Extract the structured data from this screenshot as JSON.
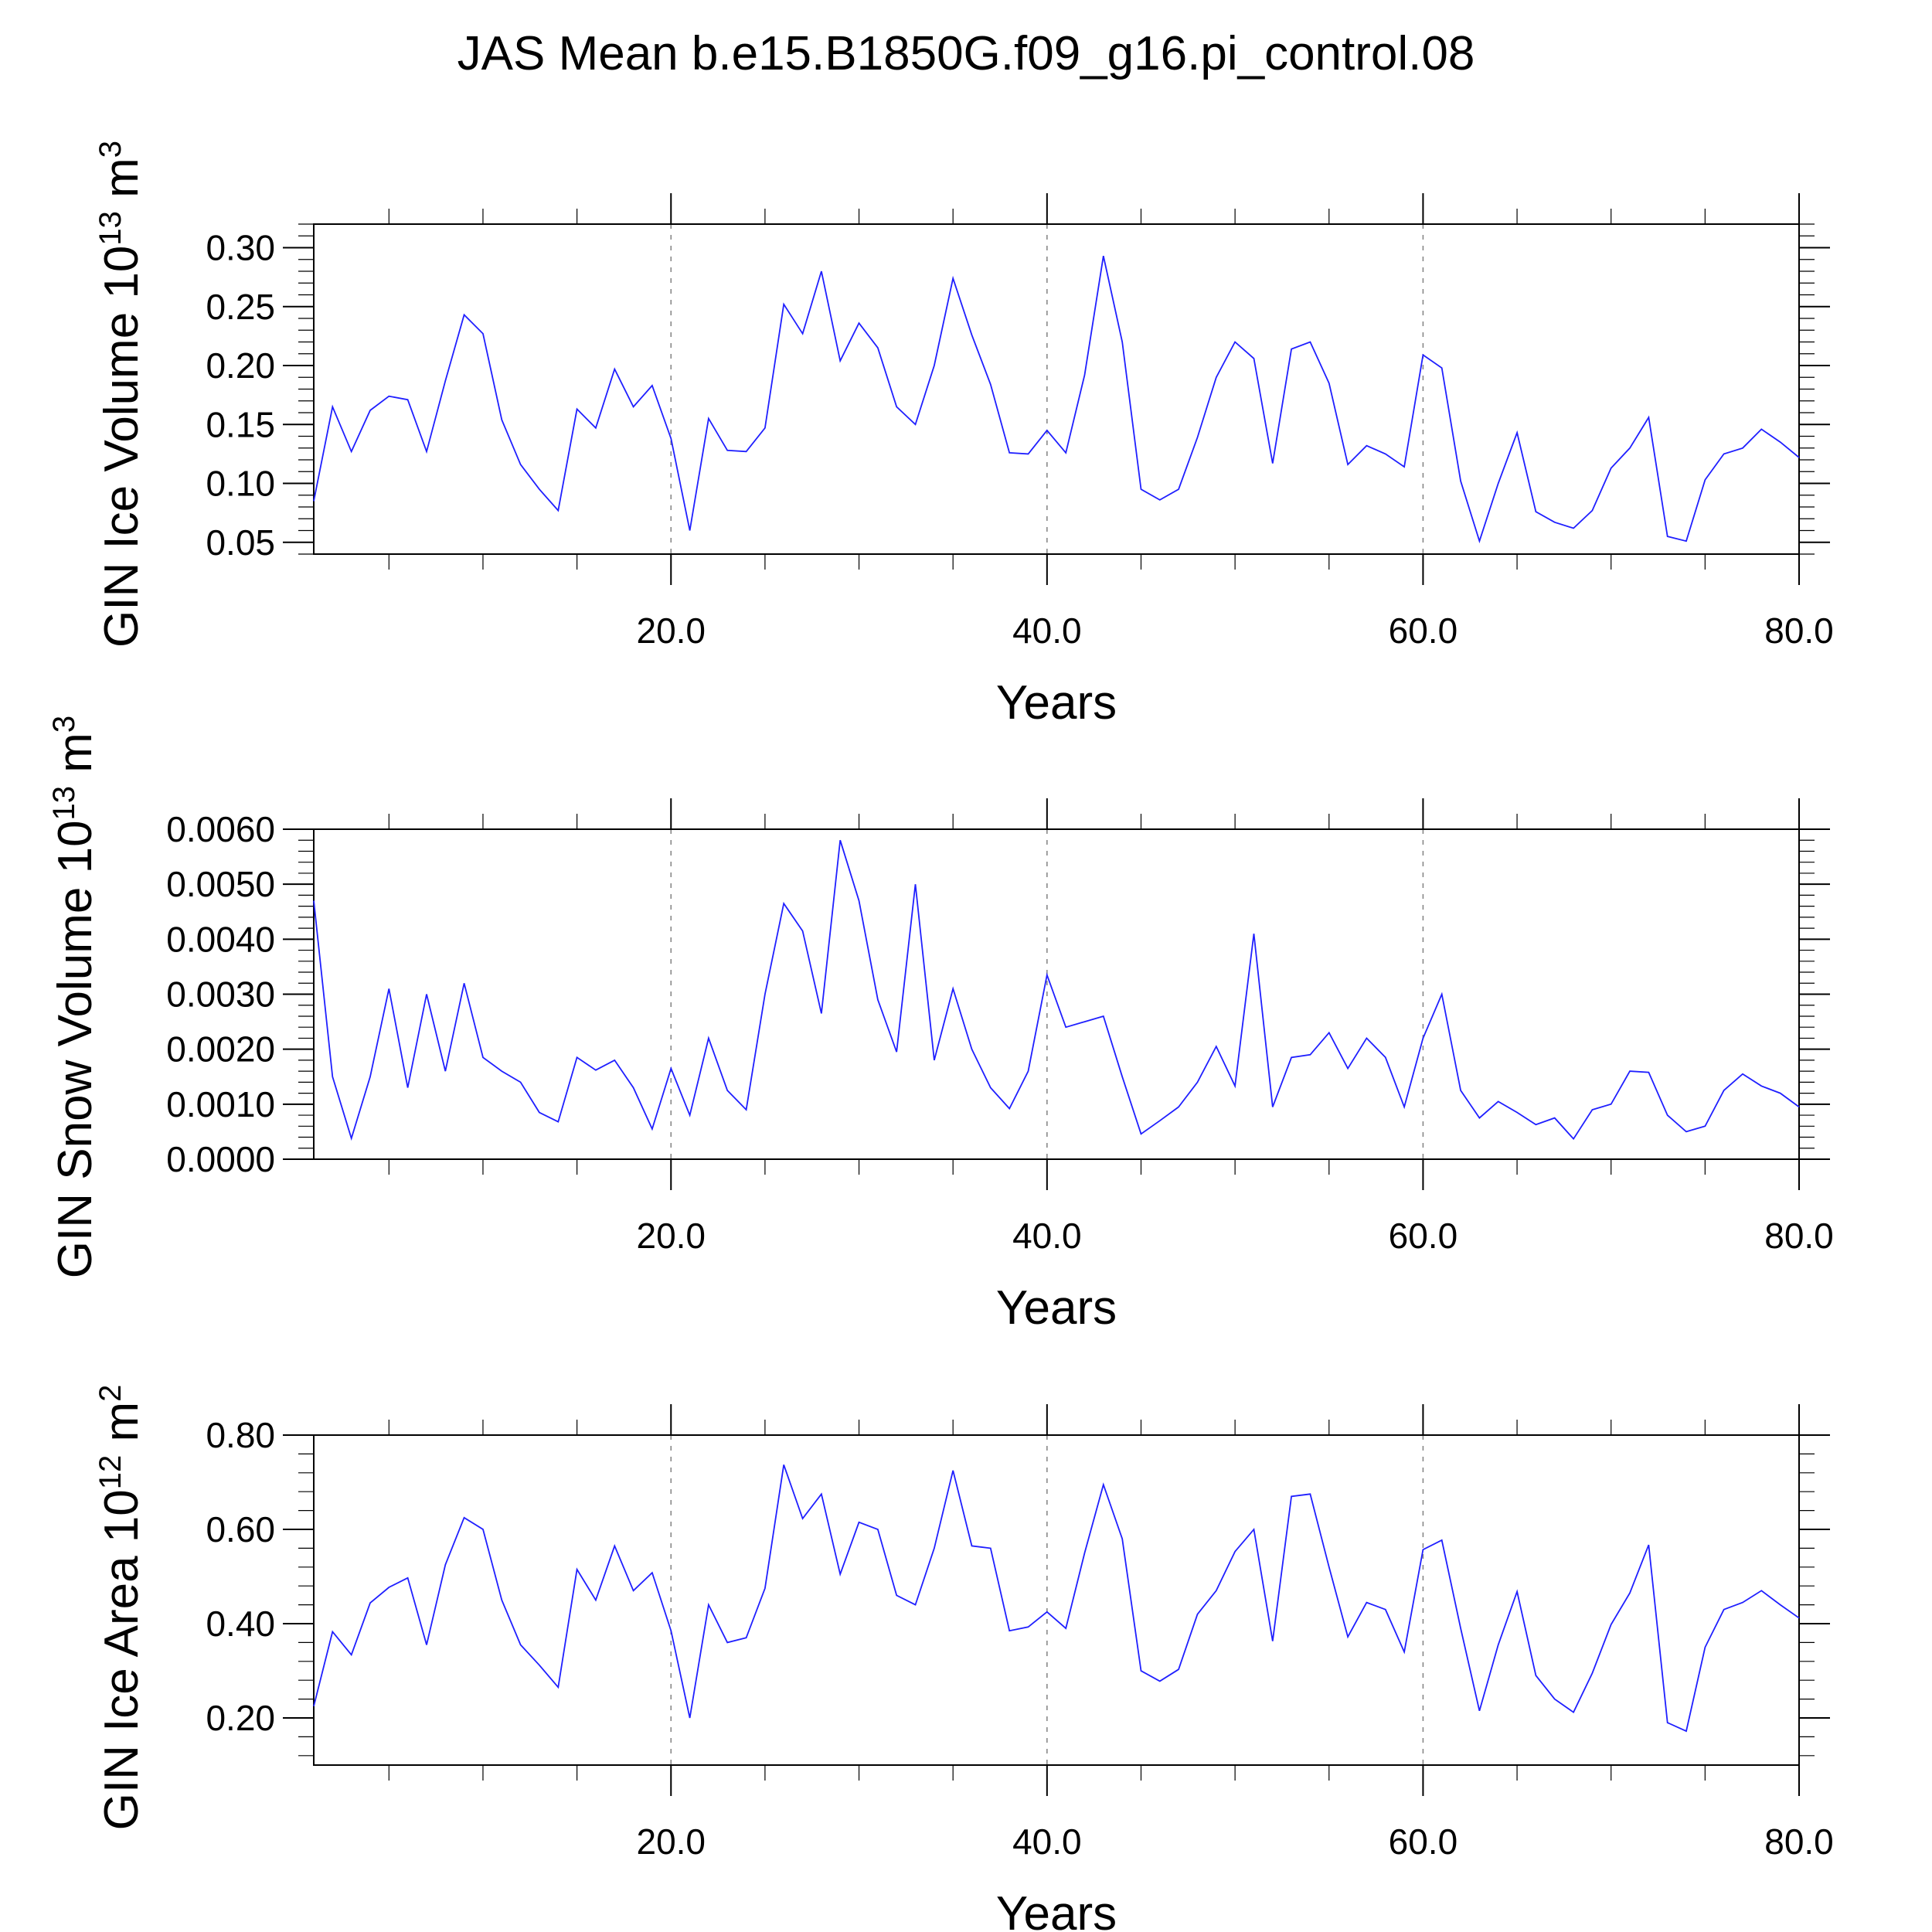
{
  "figure": {
    "title": "JAS Mean b.e15.B1850G.f09_g16.pi_control.08"
  },
  "chart_data": [
    {
      "type": "line",
      "ylabel": "GIN Ice Volume 10",
      "ylabel_exp": "13",
      "ylabel_unit": " m",
      "ylabel_unit_exp": "3",
      "xlabel": "Years",
      "xlim": [
        1,
        80
      ],
      "ylim": [
        0.04,
        0.32
      ],
      "x_ticks": [
        20,
        40,
        60,
        80
      ],
      "x_tick_labels": [
        "20.0",
        "40.0",
        "60.0",
        "80.0"
      ],
      "y_ticks": [
        0.05,
        0.1,
        0.15,
        0.2,
        0.25,
        0.3
      ],
      "y_tick_labels": [
        "0.05",
        "0.10",
        "0.15",
        "0.20",
        "0.25",
        "0.30"
      ],
      "color": "#1f1fff",
      "series": [
        {
          "x": [
            1,
            2,
            3,
            4,
            5,
            6,
            7,
            8,
            9,
            10,
            11,
            12,
            13,
            14,
            15,
            16,
            17,
            18,
            19,
            20,
            21,
            22,
            23,
            24,
            25,
            26,
            27,
            28,
            29,
            30,
            31,
            32,
            33,
            34,
            35,
            36,
            37,
            38,
            39,
            40,
            41,
            42,
            43,
            44,
            45,
            46,
            47,
            48,
            49,
            50,
            51,
            52,
            53,
            54,
            55,
            56,
            57,
            58,
            59,
            60,
            61,
            62,
            63,
            64,
            65,
            66,
            67,
            68,
            69,
            70,
            71,
            72,
            73,
            74,
            75,
            76,
            77,
            78,
            79,
            80
          ],
          "values": [
            0.085,
            0.165,
            0.127,
            0.162,
            0.174,
            0.171,
            0.127,
            0.187,
            0.243,
            0.227,
            0.154,
            0.116,
            0.095,
            0.077,
            0.163,
            0.147,
            0.197,
            0.165,
            0.183,
            0.138,
            0.06,
            0.155,
            0.128,
            0.127,
            0.147,
            0.252,
            0.227,
            0.28,
            0.204,
            0.236,
            0.215,
            0.165,
            0.15,
            0.2,
            0.274,
            0.226,
            0.184,
            0.126,
            0.125,
            0.145,
            0.126,
            0.192,
            0.293,
            0.22,
            0.095,
            0.086,
            0.095,
            0.139,
            0.19,
            0.22,
            0.206,
            0.117,
            0.214,
            0.22,
            0.185,
            0.116,
            0.132,
            0.125,
            0.114,
            0.209,
            0.198,
            0.102,
            0.051,
            0.1,
            0.143,
            0.076,
            0.067,
            0.062,
            0.077,
            0.113,
            0.13,
            0.156,
            0.055,
            0.051,
            0.103,
            0.125,
            0.13,
            0.146,
            0.135,
            0.122
          ]
        }
      ]
    },
    {
      "type": "line",
      "ylabel": "GIN Snow Volume 10",
      "ylabel_exp": "13",
      "ylabel_unit": " m",
      "ylabel_unit_exp": "3",
      "xlabel": "Years",
      "xlim": [
        1,
        80
      ],
      "ylim": [
        0.0,
        0.006
      ],
      "x_ticks": [
        20,
        40,
        60,
        80
      ],
      "x_tick_labels": [
        "20.0",
        "40.0",
        "60.0",
        "80.0"
      ],
      "y_ticks": [
        0.0,
        0.001,
        0.002,
        0.003,
        0.004,
        0.005,
        0.006
      ],
      "y_tick_labels": [
        "0.0000",
        "0.0010",
        "0.0020",
        "0.0030",
        "0.0040",
        "0.0050",
        "0.0060"
      ],
      "color": "#1f1fff",
      "series": [
        {
          "x": [
            1,
            2,
            3,
            4,
            5,
            6,
            7,
            8,
            9,
            10,
            11,
            12,
            13,
            14,
            15,
            16,
            17,
            18,
            19,
            20,
            21,
            22,
            23,
            24,
            25,
            26,
            27,
            28,
            29,
            30,
            31,
            32,
            33,
            34,
            35,
            36,
            37,
            38,
            39,
            40,
            41,
            42,
            43,
            44,
            45,
            46,
            47,
            48,
            49,
            50,
            51,
            52,
            53,
            54,
            55,
            56,
            57,
            58,
            59,
            60,
            61,
            62,
            63,
            64,
            65,
            66,
            67,
            68,
            69,
            70,
            71,
            72,
            73,
            74,
            75,
            76,
            77,
            78,
            79,
            80
          ],
          "values": [
            0.0047,
            0.0015,
            0.00038,
            0.0015,
            0.0031,
            0.0013,
            0.003,
            0.0016,
            0.0032,
            0.00185,
            0.0016,
            0.0014,
            0.00085,
            0.00068,
            0.00185,
            0.00162,
            0.0018,
            0.0013,
            0.00055,
            0.00165,
            0.0008,
            0.0022,
            0.00125,
            0.0009,
            0.003,
            0.00465,
            0.00415,
            0.00265,
            0.0058,
            0.0047,
            0.0029,
            0.00195,
            0.005,
            0.0018,
            0.0031,
            0.002,
            0.0013,
            0.00092,
            0.0016,
            0.00335,
            0.0024,
            0.0025,
            0.0026,
            0.0015,
            0.00046,
            0.0007,
            0.00095,
            0.0014,
            0.00205,
            0.00133,
            0.0041,
            0.00095,
            0.00185,
            0.0019,
            0.0023,
            0.00165,
            0.0022,
            0.00185,
            0.00095,
            0.0022,
            0.003,
            0.00125,
            0.00075,
            0.00105,
            0.00085,
            0.00063,
            0.00075,
            0.00037,
            0.0009,
            0.001,
            0.0016,
            0.00158,
            0.0008,
            0.0005,
            0.0006,
            0.00125,
            0.00155,
            0.00133,
            0.0012,
            0.00095
          ]
        }
      ]
    },
    {
      "type": "line",
      "ylabel": "GIN Ice Area 10",
      "ylabel_exp": "12",
      "ylabel_unit": " m",
      "ylabel_unit_exp": "2",
      "xlabel": "Years",
      "xlim": [
        1,
        80
      ],
      "ylim": [
        0.1,
        0.8
      ],
      "x_ticks": [
        20,
        40,
        60,
        80
      ],
      "x_tick_labels": [
        "20.0",
        "40.0",
        "60.0",
        "80.0"
      ],
      "y_ticks": [
        0.2,
        0.4,
        0.6,
        0.8
      ],
      "y_tick_labels": [
        "0.20",
        "0.40",
        "0.60",
        "0.80"
      ],
      "color": "#1f1fff",
      "series": [
        {
          "x": [
            1,
            2,
            3,
            4,
            5,
            6,
            7,
            8,
            9,
            10,
            11,
            12,
            13,
            14,
            15,
            16,
            17,
            18,
            19,
            20,
            21,
            22,
            23,
            24,
            25,
            26,
            27,
            28,
            29,
            30,
            31,
            32,
            33,
            34,
            35,
            36,
            37,
            38,
            39,
            40,
            41,
            42,
            43,
            44,
            45,
            46,
            47,
            48,
            49,
            50,
            51,
            52,
            53,
            54,
            55,
            56,
            57,
            58,
            59,
            60,
            61,
            62,
            63,
            64,
            65,
            66,
            67,
            68,
            69,
            70,
            71,
            72,
            73,
            74,
            75,
            76,
            77,
            78,
            79,
            80
          ],
          "values": [
            0.225,
            0.383,
            0.334,
            0.444,
            0.477,
            0.497,
            0.355,
            0.525,
            0.625,
            0.6,
            0.45,
            0.355,
            0.312,
            0.265,
            0.515,
            0.45,
            0.565,
            0.47,
            0.508,
            0.385,
            0.2,
            0.44,
            0.36,
            0.37,
            0.475,
            0.737,
            0.623,
            0.675,
            0.505,
            0.615,
            0.6,
            0.46,
            0.44,
            0.56,
            0.725,
            0.565,
            0.56,
            0.385,
            0.393,
            0.425,
            0.39,
            0.55,
            0.695,
            0.58,
            0.3,
            0.278,
            0.303,
            0.42,
            0.47,
            0.553,
            0.6,
            0.363,
            0.67,
            0.675,
            0.52,
            0.372,
            0.445,
            0.43,
            0.34,
            0.557,
            0.577,
            0.39,
            0.215,
            0.355,
            0.468,
            0.29,
            0.24,
            0.212,
            0.295,
            0.398,
            0.465,
            0.567,
            0.19,
            0.172,
            0.35,
            0.43,
            0.445,
            0.47,
            0.44,
            0.412
          ]
        }
      ]
    }
  ]
}
